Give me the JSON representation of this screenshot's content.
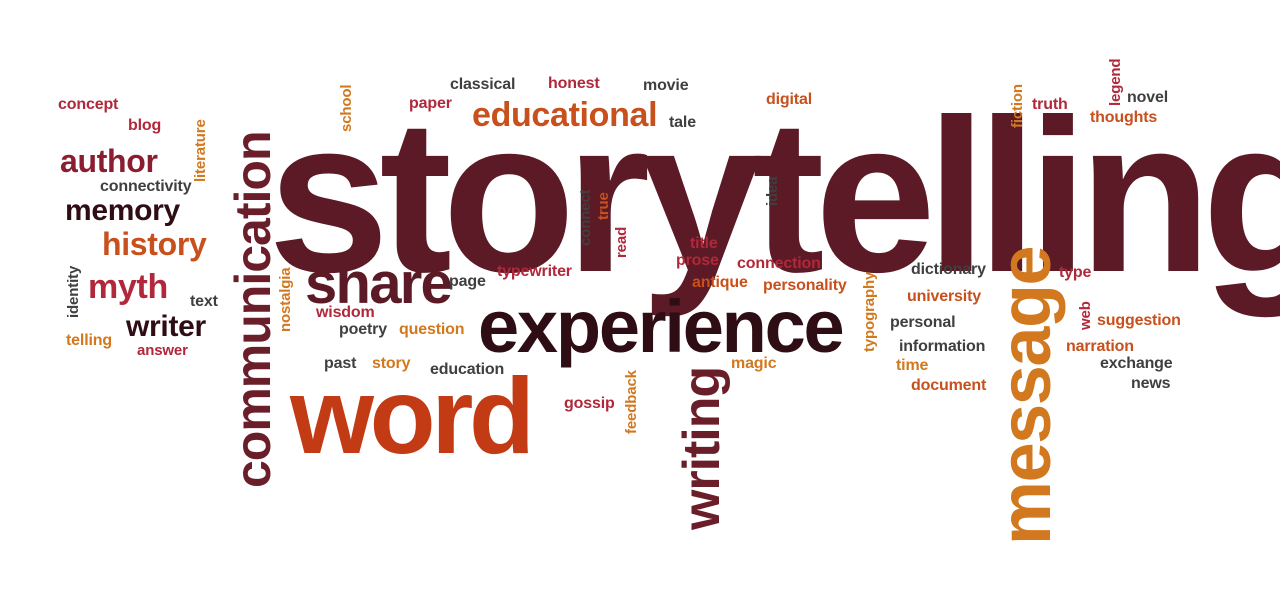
{
  "colors": {
    "maroon": "#5b1a26",
    "dark": "#3a1018",
    "red": "#b0283a",
    "orange": "#c8501c",
    "amber": "#d2781e",
    "gray": "#3f3f3f"
  },
  "words": {
    "storytelling": "storytelling",
    "experience": "experience",
    "word": "word",
    "message": "message",
    "communication": "communication",
    "writing": "writing",
    "share": "share",
    "educational": "educational",
    "author": "author",
    "memory": "memory",
    "history": "history",
    "myth": "myth",
    "writer": "writer",
    "concept": "concept",
    "blog": "blog",
    "literature": "literature",
    "connectivity": "connectivity",
    "identity": "identity",
    "text": "text",
    "telling": "telling",
    "answer": "answer",
    "nostalgia": "nostalgia",
    "school": "school",
    "paper": "paper",
    "classical": "classical",
    "honest": "honest",
    "movie": "movie",
    "tale": "tale",
    "digital": "digital",
    "fiction": "fiction",
    "truth": "truth",
    "legend": "legend",
    "novel": "novel",
    "thoughts": "thoughts",
    "connect": "connect",
    "true": "true",
    "read": "read",
    "idea": "idea",
    "title": "title",
    "prose": "prose",
    "connection": "connection",
    "antique": "antique",
    "personality": "personality",
    "typography": "typography",
    "page": "page",
    "typewriter": "typewriter",
    "wisdom": "wisdom",
    "poetry": "poetry",
    "question": "question",
    "past": "past",
    "story": "story",
    "education": "education",
    "gossip": "gossip",
    "feedback": "feedback",
    "magic": "magic",
    "dictionary": "dictionary",
    "university": "university",
    "type": "type",
    "web": "web",
    "suggestion": "suggestion",
    "personal": "personal",
    "information": "information",
    "narration": "narration",
    "time": "time",
    "document": "document",
    "exchange": "exchange",
    "news": "news"
  }
}
